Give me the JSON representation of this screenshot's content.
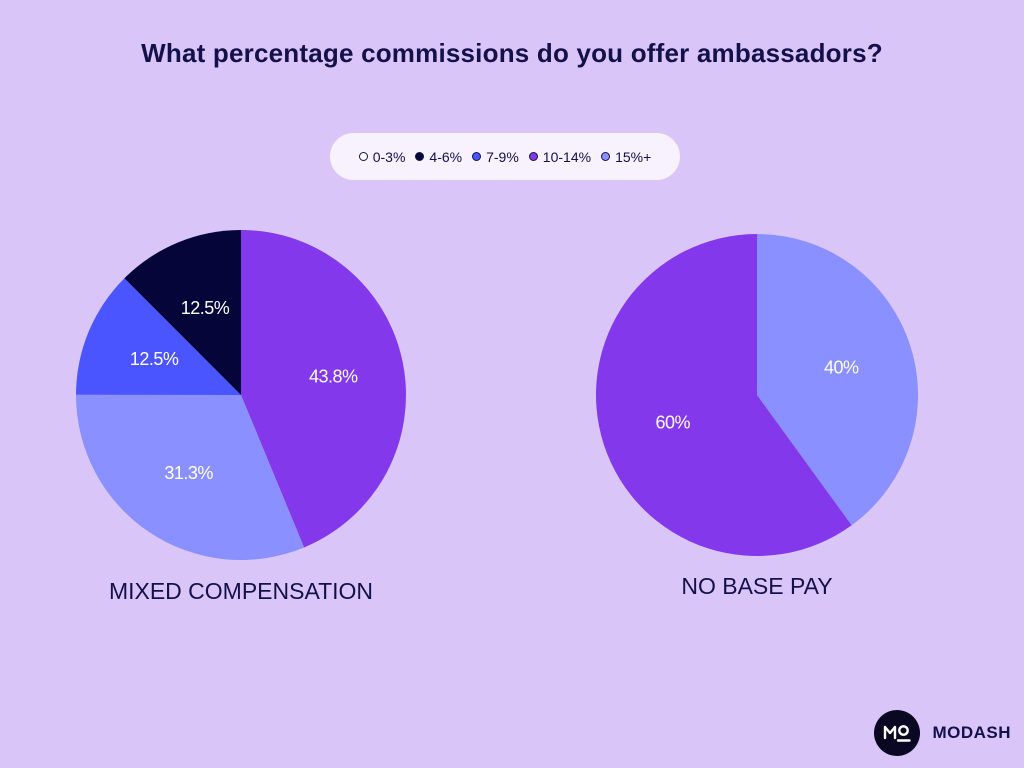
{
  "title": "What percentage commissions do you offer ambassadors?",
  "legend": [
    {
      "label": "0-3%",
      "color": "#ffffff"
    },
    {
      "label": "4-6%",
      "color": "#05053a"
    },
    {
      "label": "7-9%",
      "color": "#4a55ff"
    },
    {
      "label": "10-14%",
      "color": "#8338ec"
    },
    {
      "label": "15%+",
      "color": "#8a90ff"
    }
  ],
  "chart_data": [
    {
      "type": "pie",
      "title": "MIXED COMPENSATION",
      "slices": [
        {
          "category": "10-14%",
          "value": 43.8,
          "label": "43.8%",
          "color": "#8338ec"
        },
        {
          "category": "15%+",
          "value": 31.3,
          "label": "31.3%",
          "color": "#8a90ff"
        },
        {
          "category": "7-9%",
          "value": 12.5,
          "label": "12.5%",
          "color": "#4a55ff"
        },
        {
          "category": "4-6%",
          "value": 12.5,
          "label": "12.5%",
          "color": "#05053a"
        }
      ]
    },
    {
      "type": "pie",
      "title": "NO BASE PAY",
      "slices": [
        {
          "category": "15%+",
          "value": 40,
          "label": "40%",
          "color": "#8a90ff"
        },
        {
          "category": "10-14%",
          "value": 60,
          "label": "60%",
          "color": "#8338ec"
        }
      ]
    }
  ],
  "brand": {
    "name": "MODASH"
  }
}
